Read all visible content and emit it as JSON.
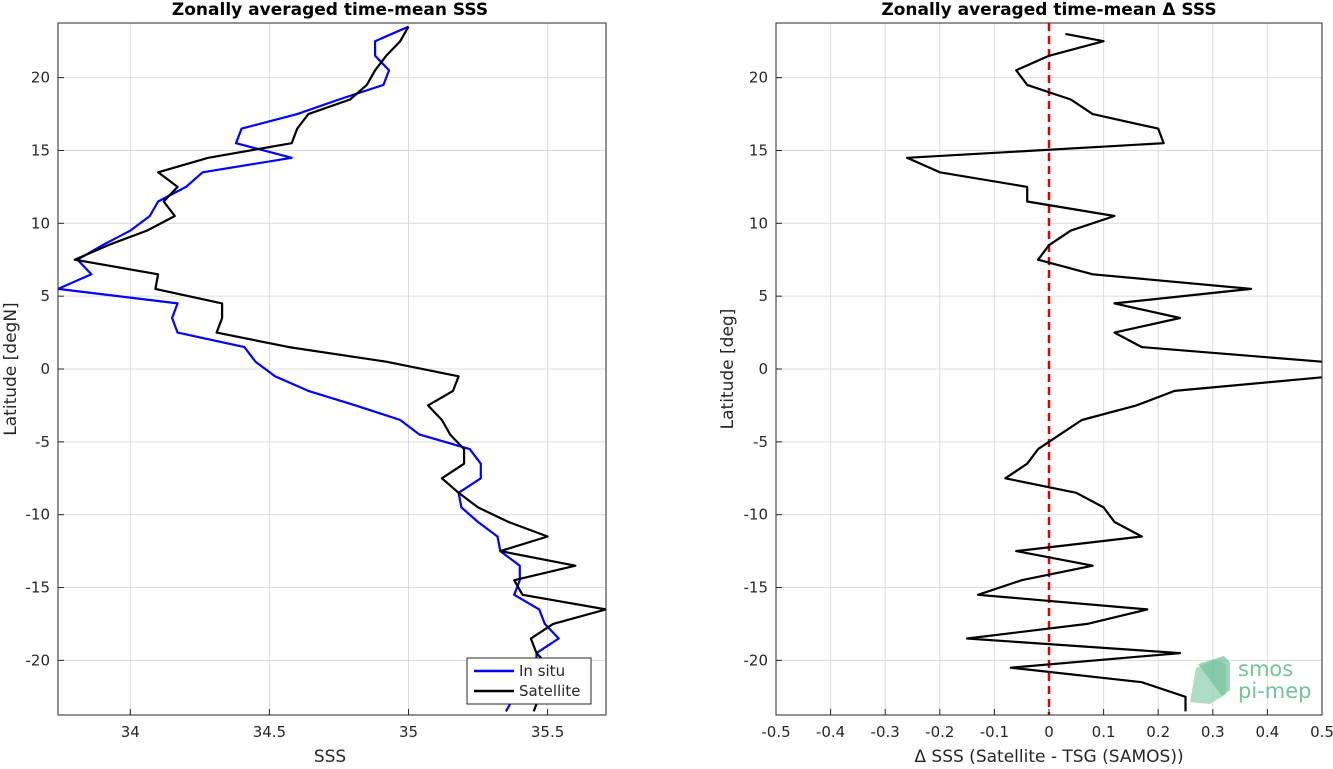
{
  "chart_data": [
    {
      "type": "line",
      "title": "Zonally averaged time-mean SSS",
      "xlabel": "SSS",
      "ylabel": "Latitude [degN]",
      "xlim": [
        33.74,
        35.71
      ],
      "ylim": [
        -23.75,
        23.75
      ],
      "xticks": [
        "34",
        "34.5",
        "35",
        "35.5"
      ],
      "xtick_values": [
        34,
        34.5,
        35,
        35.5
      ],
      "yticks": [
        "20",
        "15",
        "10",
        "5",
        "0",
        "-5",
        "-10",
        "-15",
        "-20"
      ],
      "ytick_values": [
        20,
        15,
        10,
        5,
        0,
        -5,
        -10,
        -15,
        -20
      ],
      "grid": true,
      "legend_position": "bottom-right",
      "series": [
        {
          "name": "In situ",
          "color": "#0000ff",
          "lat": [
            23.5,
            22.5,
            21.5,
            20.5,
            19.5,
            18.5,
            17.5,
            16.5,
            15.5,
            14.5,
            13.5,
            12.5,
            11.5,
            10.5,
            9.5,
            8.5,
            7.5,
            6.5,
            5.5,
            4.5,
            3.5,
            2.5,
            1.5,
            0.5,
            -0.5,
            -1.5,
            -2.5,
            -3.5,
            -4.5,
            -5.5,
            -6.5,
            -7.5,
            -8.5,
            -9.5,
            -10.5,
            -11.5,
            -12.5,
            -13.5,
            -14.5,
            -15.5,
            -16.5,
            -17.5,
            -18.5,
            -19.5,
            -20.5,
            -21.5,
            -22.5,
            -23.5
          ],
          "values": [
            35.0,
            34.88,
            34.88,
            34.93,
            34.91,
            34.75,
            34.6,
            34.4,
            34.38,
            34.58,
            34.26,
            34.2,
            34.1,
            34.07,
            34.0,
            33.9,
            33.81,
            33.86,
            33.74,
            34.17,
            34.15,
            34.17,
            34.41,
            34.45,
            34.52,
            34.64,
            34.81,
            34.97,
            35.04,
            35.22,
            35.26,
            35.26,
            35.18,
            35.19,
            35.25,
            35.32,
            35.33,
            35.4,
            35.4,
            35.38,
            35.47,
            35.49,
            35.54,
            35.46,
            35.46,
            35.42,
            35.38,
            35.35
          ]
        },
        {
          "name": "Satellite",
          "color": "#000000",
          "lat": [
            23.5,
            22.5,
            21.5,
            20.5,
            19.5,
            18.5,
            17.5,
            16.5,
            15.5,
            14.5,
            13.5,
            12.5,
            11.5,
            10.5,
            9.5,
            8.5,
            7.5,
            6.5,
            5.5,
            4.5,
            3.5,
            2.5,
            1.5,
            0.5,
            -0.5,
            -1.5,
            -2.5,
            -3.5,
            -4.5,
            -5.5,
            -6.5,
            -7.5,
            -8.5,
            -9.5,
            -10.5,
            -11.5,
            -12.5,
            -13.5,
            -14.5,
            -15.5,
            -16.5,
            -17.5,
            -18.5,
            -19.5,
            -20.5,
            -21.5,
            -22.5,
            -23.5
          ],
          "values": [
            35.0,
            34.97,
            34.92,
            34.88,
            34.85,
            34.79,
            34.64,
            34.6,
            34.58,
            34.28,
            34.1,
            34.17,
            34.12,
            34.16,
            34.06,
            33.92,
            33.8,
            34.1,
            34.09,
            34.33,
            34.33,
            34.31,
            34.57,
            34.92,
            35.18,
            35.16,
            35.07,
            35.12,
            35.15,
            35.2,
            35.2,
            35.12,
            35.18,
            35.25,
            35.36,
            35.5,
            35.33,
            35.6,
            35.38,
            35.41,
            35.71,
            35.52,
            35.44,
            35.46,
            35.51,
            35.49,
            35.47,
            35.45
          ]
        }
      ]
    },
    {
      "type": "line",
      "title": "Zonally averaged time-mean Δ SSS",
      "xlabel": "Δ SSS (Satellite - TSG (SAMOS))",
      "ylabel": "Latitude [deg]",
      "xlim": [
        -0.5,
        0.5
      ],
      "ylim": [
        -23.75,
        23.75
      ],
      "xticks": [
        "-0.5",
        "-0.4",
        "-0.3",
        "-0.2",
        "-0.1",
        "0",
        "0.1",
        "0.2",
        "0.3",
        "0.4",
        "0.5"
      ],
      "xtick_values": [
        -0.5,
        -0.4,
        -0.3,
        -0.2,
        -0.1,
        0,
        0.1,
        0.2,
        0.3,
        0.4,
        0.5
      ],
      "yticks": [
        "20",
        "15",
        "10",
        "5",
        "0",
        "-5",
        "-10",
        "-15",
        "-20"
      ],
      "ytick_values": [
        20,
        15,
        10,
        5,
        0,
        -5,
        -10,
        -15,
        -20
      ],
      "grid": true,
      "reference_line": {
        "x": 0,
        "color": "#e00000",
        "style": "dashed"
      },
      "series": [
        {
          "color": "#000000",
          "lat": [
            23.0,
            22.5,
            21.5,
            20.5,
            19.5,
            18.5,
            17.5,
            16.5,
            15.5,
            14.5,
            13.5,
            12.5,
            11.5,
            10.5,
            9.5,
            8.5,
            7.5,
            6.5,
            5.5,
            4.5,
            3.5,
            2.5,
            1.5,
            0.5,
            -0.5,
            -1.5,
            -2.5,
            -3.5,
            -4.5,
            -5.5,
            -6.5,
            -7.5,
            -8.5,
            -9.5,
            -10.5,
            -11.5,
            -12.5,
            -13.5,
            -14.5,
            -15.5,
            -16.5,
            -17.5,
            -18.5,
            -19.5,
            -20.5,
            -21.5,
            -22.5,
            -23.5
          ],
          "values": [
            0.03,
            0.1,
            0.0,
            -0.06,
            -0.04,
            0.04,
            0.08,
            0.2,
            0.21,
            -0.26,
            -0.2,
            -0.04,
            -0.04,
            0.12,
            0.04,
            0.0,
            -0.02,
            0.08,
            0.37,
            0.12,
            0.24,
            0.12,
            0.17,
            0.5,
            0.52,
            0.23,
            0.16,
            0.06,
            0.02,
            -0.02,
            -0.04,
            -0.08,
            0.05,
            0.1,
            0.12,
            0.17,
            -0.06,
            0.08,
            -0.05,
            -0.13,
            0.18,
            0.07,
            -0.15,
            0.24,
            -0.07,
            0.17,
            0.25,
            0.25
          ]
        }
      ]
    }
  ],
  "watermark": {
    "line1": "smos",
    "line2": "pi-mep",
    "color": "#5bb88a"
  }
}
